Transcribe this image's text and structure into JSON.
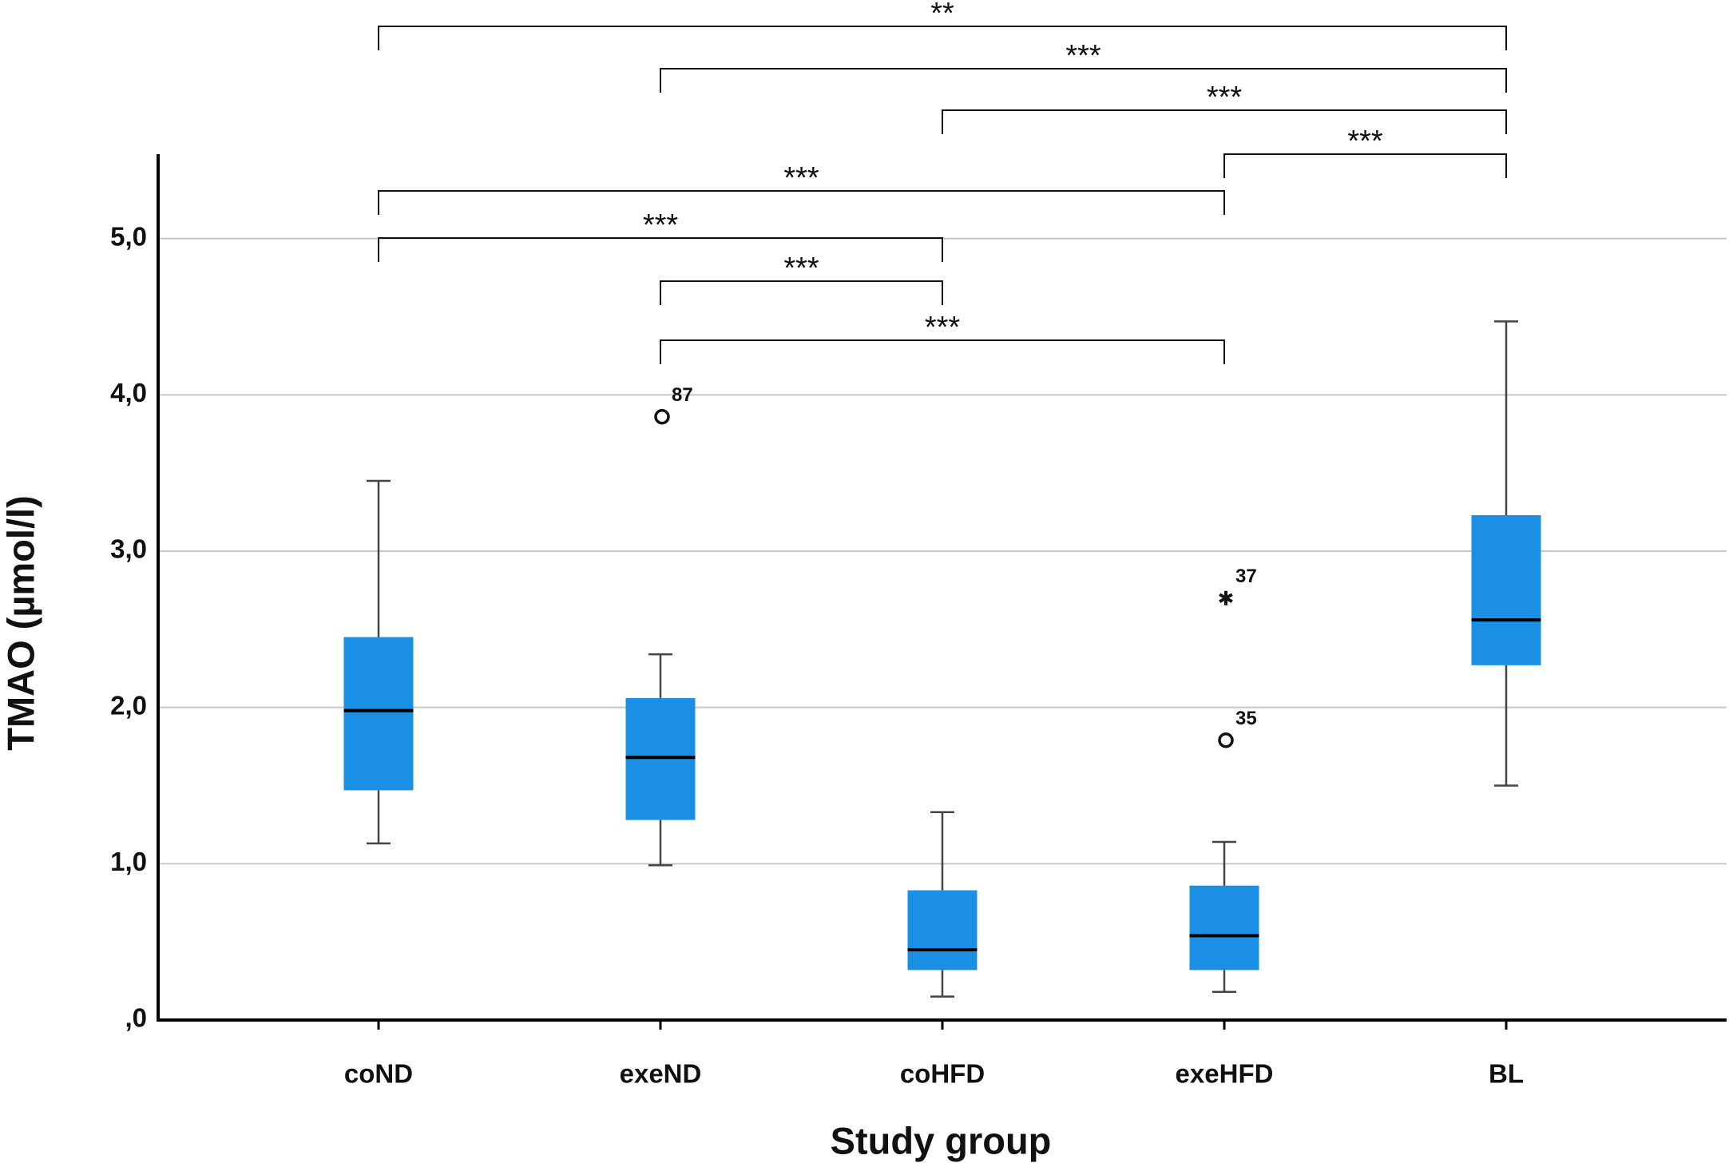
{
  "chart_data": {
    "type": "box",
    "x_label": "Study group",
    "y_label": "TMAO (µmol/l)",
    "categories": [
      "coND",
      "exeND",
      "coHFD",
      "exeHFD",
      "BL"
    ],
    "color": "#1a8fe3",
    "boxes": [
      {
        "whisker_low": 1.13,
        "q1": 1.47,
        "median": 1.98,
        "q3": 2.45,
        "whisker_high": 3.45,
        "outliers": []
      },
      {
        "whisker_low": 0.99,
        "q1": 1.28,
        "median": 1.68,
        "q3": 2.06,
        "whisker_high": 2.34,
        "outliers": [
          {
            "value": 3.86,
            "label": "87",
            "symbol": "circle"
          }
        ]
      },
      {
        "whisker_low": 0.15,
        "q1": 0.32,
        "median": 0.45,
        "q3": 0.83,
        "whisker_high": 1.33,
        "outliers": []
      },
      {
        "whisker_low": 0.18,
        "q1": 0.32,
        "median": 0.54,
        "q3": 0.86,
        "whisker_high": 1.14,
        "outliers": [
          {
            "value": 1.79,
            "label": "35",
            "symbol": "circle"
          },
          {
            "value": 2.7,
            "label": "37",
            "symbol": "star"
          }
        ]
      },
      {
        "whisker_low": 1.5,
        "q1": 2.27,
        "median": 2.56,
        "q3": 3.23,
        "whisker_high": 4.47,
        "outliers": []
      }
    ],
    "ylim": [
      0,
      5.54
    ],
    "yticks": [
      {
        "value": 0,
        "label": ",0"
      },
      {
        "value": 1,
        "label": "1,0"
      },
      {
        "value": 2,
        "label": "2,0"
      },
      {
        "value": 3,
        "label": "3,0"
      },
      {
        "value": 4,
        "label": "4,0"
      },
      {
        "value": 5,
        "label": "5,0"
      }
    ],
    "grid": true,
    "comparisons": [
      {
        "groups": [
          0,
          4
        ],
        "label": "**"
      },
      {
        "groups": [
          1,
          4
        ],
        "label": "***"
      },
      {
        "groups": [
          2,
          4
        ],
        "label": "***"
      },
      {
        "groups": [
          3,
          4
        ],
        "label": "***"
      },
      {
        "groups": [
          0,
          3
        ],
        "label": "***"
      },
      {
        "groups": [
          0,
          2
        ],
        "label": "***"
      },
      {
        "groups": [
          1,
          2
        ],
        "label": "***"
      },
      {
        "groups": [
          1,
          3
        ],
        "label": "***"
      }
    ]
  }
}
